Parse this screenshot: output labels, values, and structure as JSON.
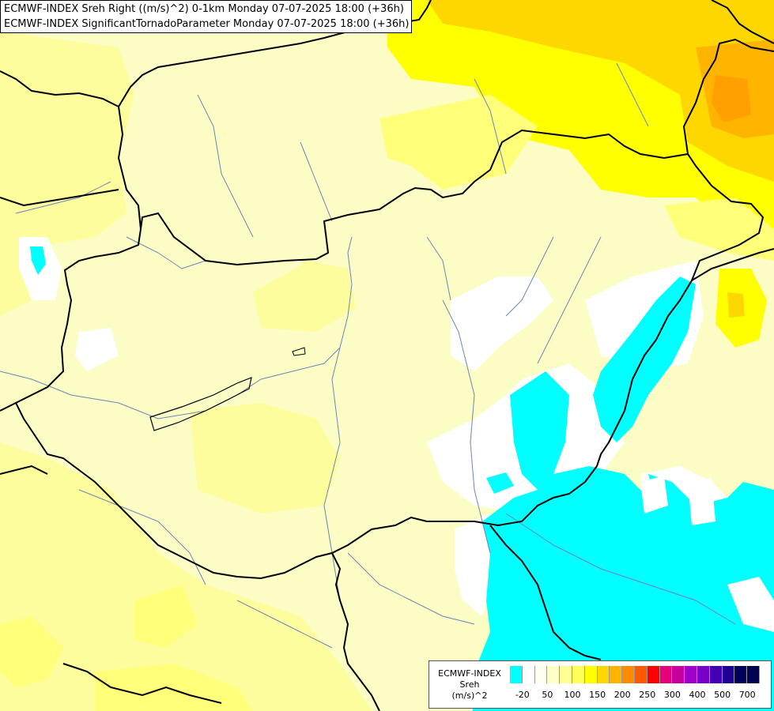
{
  "header": {
    "line1": "ECMWF-INDEX Sreh Right ((m/s)^2) 0-1km Monday 07-07-2025 18:00 (+36h)",
    "line2": "ECMWF-INDEX SignificantTornadoParameter Monday 07-07-2025 18:00 (+36h)"
  },
  "legend": {
    "title_line1": "ECMWF-INDEX",
    "title_line2": "Sreh",
    "title_line3": "(m/s)^2",
    "colors": [
      "#00ffff",
      "#ffffff",
      "#fffff0",
      "#ffffc8",
      "#ffff96",
      "#ffff5a",
      "#ffff00",
      "#ffd700",
      "#ffb400",
      "#ff8c00",
      "#ff5a00",
      "#ff0000",
      "#e6007a",
      "#c8009b",
      "#a000c8",
      "#7800c8",
      "#4600b4",
      "#1e0096",
      "#00005a",
      "#000050"
    ],
    "tick_labels": [
      "-20",
      "50",
      "100",
      "150",
      "200",
      "250",
      "300",
      "400",
      "500",
      "700"
    ]
  },
  "map_palette": {
    "background": "#fbfdc4",
    "pale_yellow": "#fdfd9e",
    "light_yellow": "#ffff7a",
    "yellow": "#ffff00",
    "gold": "#ffd700",
    "orange": "#ffb400",
    "white": "#ffffff",
    "cyan": "#00ffff",
    "border": "#000000",
    "river": "#6a86b8"
  }
}
